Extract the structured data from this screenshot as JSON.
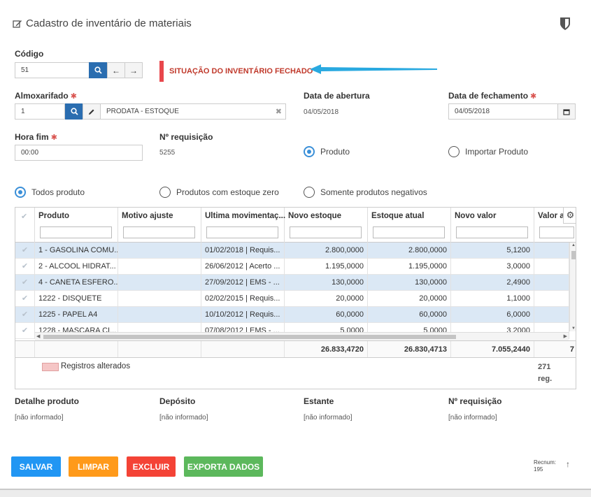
{
  "title": "Cadastro de inventário de materiais",
  "codigo": {
    "label": "Código",
    "value": "51"
  },
  "status_text": "SITUAÇÃO DO INVENTÁRIO FECHADO",
  "almox": {
    "label": "Almoxarifado",
    "code": "1",
    "name": "PRODATA - ESTOQUE"
  },
  "abertura": {
    "label": "Data de abertura",
    "value": "04/05/2018"
  },
  "fechamento": {
    "label": "Data de fechamento",
    "value": "04/05/2018"
  },
  "hora_fim": {
    "label": "Hora fim",
    "value": "00:00"
  },
  "requisicao": {
    "label": "Nº requisição",
    "value": "5255"
  },
  "tipo_radios": [
    {
      "label": "Produto",
      "checked": true
    },
    {
      "label": "Importar Produto",
      "checked": false
    }
  ],
  "filtro_radios": [
    {
      "label": "Todos produto",
      "checked": true
    },
    {
      "label": "Produtos com estoque zero",
      "checked": false
    },
    {
      "label": "Somente produtos negativos",
      "checked": false
    }
  ],
  "grid": {
    "columns": [
      "Produto",
      "Motivo ajuste",
      "Ultima movimentaç...",
      "Novo estoque",
      "Estoque atual",
      "Novo valor",
      "Valor at"
    ],
    "rows": [
      {
        "selected": true,
        "cells": [
          "1 - GASOLINA COMU...",
          "",
          "01/02/2018 | Requis...",
          "2.800,0000",
          "2.800,0000",
          "5,1200",
          ""
        ]
      },
      {
        "selected": false,
        "cells": [
          "2 - ALCOOL HIDRAT...",
          "",
          "26/06/2012 | Acerto ...",
          "1.195,0000",
          "1.195,0000",
          "3,0000",
          ""
        ]
      },
      {
        "selected": true,
        "cells": [
          "4 - CANETA ESFERO...",
          "",
          "27/09/2012 | EMS - ...",
          "130,0000",
          "130,0000",
          "2,4900",
          ""
        ]
      },
      {
        "selected": false,
        "cells": [
          "1222 - DISQUETE",
          "",
          "02/02/2015 | Requis...",
          "20,0000",
          "20,0000",
          "1,1000",
          ""
        ]
      },
      {
        "selected": true,
        "cells": [
          "1225 - PAPEL A4",
          "",
          "10/10/2012 | Requis...",
          "60,0000",
          "60,0000",
          "6,0000",
          ""
        ]
      },
      {
        "selected": false,
        "cells": [
          "1228 - MASCARA CI...",
          "",
          "07/08/2012 | EMS - ...",
          "5,0000",
          "5,0000",
          "3,2000",
          ""
        ]
      }
    ],
    "totals": [
      "26.833,4720",
      "26.830,4713",
      "7.055,2440",
      "7"
    ]
  },
  "legend": {
    "label": "Registros alterados",
    "count": "271",
    "unit": "reg."
  },
  "detalhe": [
    {
      "label": "Detalhe produto",
      "value": "[não informado]"
    },
    {
      "label": "Depósito",
      "value": "[não informado]"
    },
    {
      "label": "Estante",
      "value": "[não informado]"
    },
    {
      "label": "Nº requisição",
      "value": "[não informado]"
    }
  ],
  "buttons": {
    "salvar": "SALVAR",
    "limpar": "LIMPAR",
    "excluir": "EXCLUIR",
    "exporta": "EXPORTA DADOS"
  },
  "recnum": {
    "label": "Recnum:",
    "value": "195"
  },
  "colors": {
    "primary": "#2a6db0",
    "salvar": "#2196f3",
    "limpar": "#ff9a1a",
    "excluir": "#f44336",
    "exporta": "#5cb85c",
    "status": "#c0392b",
    "arrow": "#29a9e0"
  }
}
